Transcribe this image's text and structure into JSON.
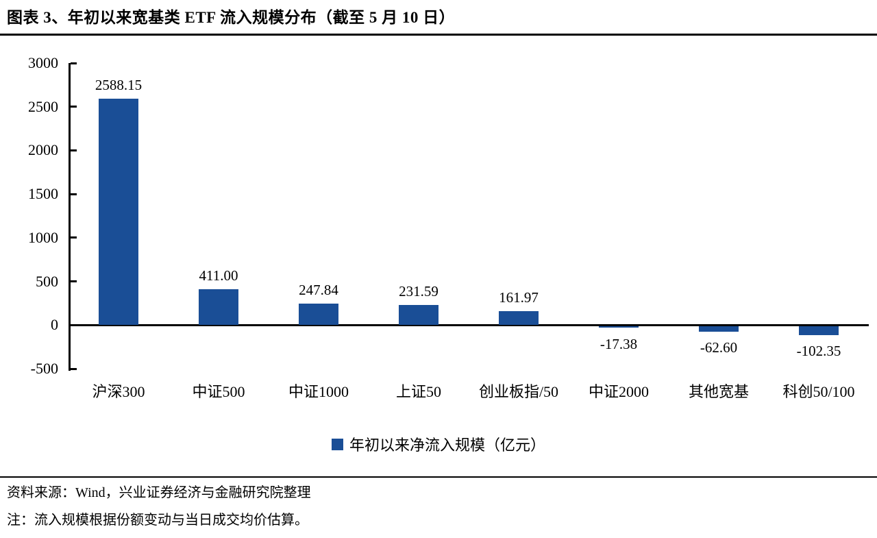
{
  "header": {
    "title": "图表 3、年初以来宽基类 ETF 流入规模分布（截至 5 月 10 日）"
  },
  "chart_data": {
    "type": "bar",
    "title": "",
    "xlabel": "",
    "ylabel": "",
    "categories": [
      "沪深300",
      "中证500",
      "中证1000",
      "上证50",
      "创业板指/50",
      "中证2000",
      "其他宽基",
      "科创50/100"
    ],
    "values": [
      2588.15,
      411.0,
      247.84,
      231.59,
      161.97,
      -17.38,
      -62.6,
      -102.35
    ],
    "value_labels": [
      "2588.15",
      "411.00",
      "247.84",
      "231.59",
      "161.97",
      "-17.38",
      "-62.60",
      "-102.35"
    ],
    "legend": "年初以来净流入规模（亿元）",
    "legend_position": "bottom",
    "ylim": [
      -500,
      3000
    ],
    "yticks": [
      3000,
      2500,
      2000,
      1500,
      1000,
      500,
      0,
      -500
    ],
    "ytick_labels": [
      "3000",
      "2500",
      "2000",
      "1500",
      "1000",
      "500",
      "0",
      "-500"
    ],
    "grid": false,
    "bar_color": "#1A4E96",
    "axis_color": "#000000"
  },
  "footer": {
    "source": "资料来源：Wind，兴业证券经济与金融研究院整理",
    "note": "注：流入规模根据份额变动与当日成交均价估算。"
  }
}
